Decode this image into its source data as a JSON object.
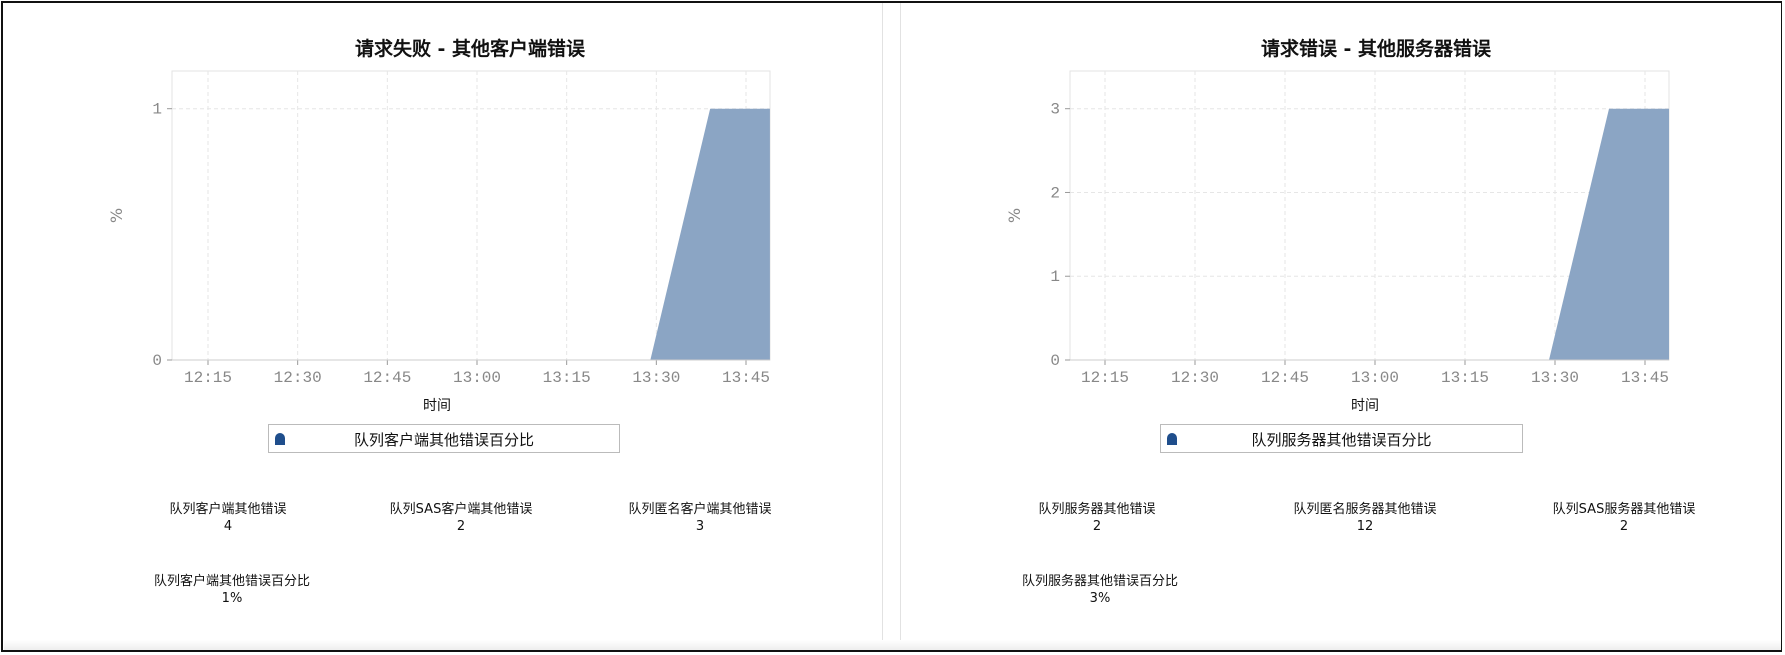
{
  "chart_data": [
    {
      "type": "area",
      "title": "请求失败 - 其他客户端错误",
      "xlabel": "时间",
      "ylabel": "%",
      "x_ticks": [
        "12:15",
        "12:30",
        "12:45",
        "13:00",
        "13:15",
        "13:30",
        "13:45"
      ],
      "y_ticks": [
        0,
        1
      ],
      "ylim": [
        0,
        1.15
      ],
      "xlim": [
        "12:05",
        "13:49"
      ],
      "grid": true,
      "legend_position": "bottom",
      "series": [
        {
          "name": "队列客户端其他错误百分比",
          "color": "#8ba5c4",
          "points": [
            [
              "13:29",
              0
            ],
            [
              "13:39",
              1
            ],
            [
              "13:49",
              1
            ]
          ]
        }
      ]
    },
    {
      "type": "area",
      "title": "请求错误 - 其他服务器错误",
      "xlabel": "时间",
      "ylabel": "%",
      "x_ticks": [
        "12:15",
        "12:30",
        "12:45",
        "13:00",
        "13:15",
        "13:30",
        "13:45"
      ],
      "y_ticks": [
        0,
        1,
        2,
        3
      ],
      "ylim": [
        0,
        3.45
      ],
      "xlim": [
        "12:05",
        "13:49"
      ],
      "grid": true,
      "legend_position": "bottom",
      "series": [
        {
          "name": "队列服务器其他错误百分比",
          "color": "#8ba5c4",
          "points": [
            [
              "13:29",
              0
            ],
            [
              "13:39",
              3
            ],
            [
              "13:49",
              3
            ]
          ]
        }
      ]
    }
  ],
  "left_stats": [
    {
      "label": "队列客户端其他错误",
      "value": "4"
    },
    {
      "label": "队列SAS客户端其他错误",
      "value": "2"
    },
    {
      "label": "队列匿名客户端其他错误",
      "value": "3"
    },
    {
      "label": "队列客户端其他错误百分比",
      "value": "1%"
    }
  ],
  "right_stats": [
    {
      "label": "队列服务器其他错误",
      "value": "2"
    },
    {
      "label": "队列匿名服务器其他错误",
      "value": "12"
    },
    {
      "label": "队列SAS服务器其他错误",
      "value": "2"
    },
    {
      "label": "队列服务器其他错误百分比",
      "value": "3%"
    }
  ],
  "legend_marker_color": "#1f4e8c"
}
